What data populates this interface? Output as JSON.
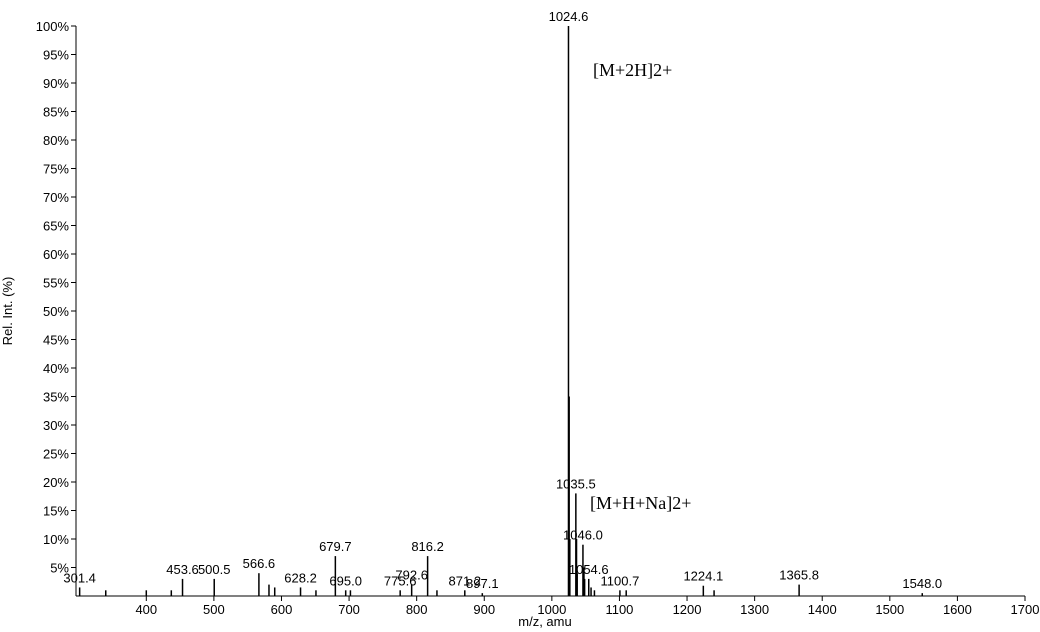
{
  "chart_data": {
    "type": "spectrum",
    "xlabel": "m/z, amu",
    "ylabel": "Rel. Int. (%)",
    "xlim": [
      296,
      1700
    ],
    "ylim": [
      0,
      100
    ],
    "xticks": [
      400,
      500,
      600,
      700,
      800,
      900,
      1000,
      1100,
      1200,
      1300,
      1400,
      1500,
      1600,
      1700
    ],
    "yticks": [
      {
        "value": 5,
        "label": "5%"
      },
      {
        "value": 10,
        "label": "10%"
      },
      {
        "value": 15,
        "label": "15%"
      },
      {
        "value": 20,
        "label": "20%"
      },
      {
        "value": 25,
        "label": "25%"
      },
      {
        "value": 30,
        "label": "30%"
      },
      {
        "value": 35,
        "label": "35%"
      },
      {
        "value": 40,
        "label": "40%"
      },
      {
        "value": 45,
        "label": "45%"
      },
      {
        "value": 50,
        "label": "50%"
      },
      {
        "value": 55,
        "label": "55%"
      },
      {
        "value": 60,
        "label": "60%"
      },
      {
        "value": 65,
        "label": "65%"
      },
      {
        "value": 70,
        "label": "70%"
      },
      {
        "value": 75,
        "label": "75%"
      },
      {
        "value": 80,
        "label": "80%"
      },
      {
        "value": 85,
        "label": "85%"
      },
      {
        "value": 90,
        "label": "90%"
      },
      {
        "value": 95,
        "label": "95%"
      },
      {
        "value": 100,
        "label": "100%"
      }
    ],
    "color": "#000000",
    "x": [
      301.4,
      340,
      400,
      437,
      453.6,
      500.5,
      566.6,
      581.5,
      590,
      628.2,
      651,
      679.7,
      695.0,
      702,
      775.6,
      792.6,
      816.2,
      830,
      871.2,
      897.1,
      1024.6,
      1025.6,
      1026.6,
      1035.5,
      1036.5,
      1037.5,
      1046.0,
      1047.5,
      1048.5,
      1054.6,
      1058,
      1063,
      1100.7,
      1110,
      1224.1,
      1240,
      1365.8,
      1548.0
    ],
    "values": [
      1.5,
      1,
      1,
      1,
      3,
      3,
      4,
      2,
      1.5,
      1.5,
      1,
      7,
      1,
      1,
      1,
      2,
      7,
      1,
      1,
      0.5,
      100,
      35,
      10,
      18,
      10,
      4,
      9,
      5,
      3,
      3,
      1.5,
      1,
      1,
      1,
      1.8,
      1,
      2,
      0.5
    ],
    "x_labels": [
      "301.4",
      null,
      null,
      null,
      "453.6",
      "500.5",
      "566.6",
      null,
      null,
      "628.2",
      null,
      "679.7",
      "695.0",
      null,
      "775.6",
      "792.6",
      "816.2",
      null,
      "871.2",
      "897.1",
      "1024.6",
      null,
      null,
      "1035.5",
      null,
      null,
      "1046.0",
      null,
      null,
      "1054.6",
      null,
      null,
      "1100.7",
      null,
      "1224.1",
      null,
      "1365.8",
      "1548.0"
    ],
    "annotations": [
      {
        "text": "[M+2H]2+",
        "color": "#3333ff"
      },
      {
        "text": "[M+H+Na]2+",
        "color": "#3333ff"
      }
    ]
  }
}
